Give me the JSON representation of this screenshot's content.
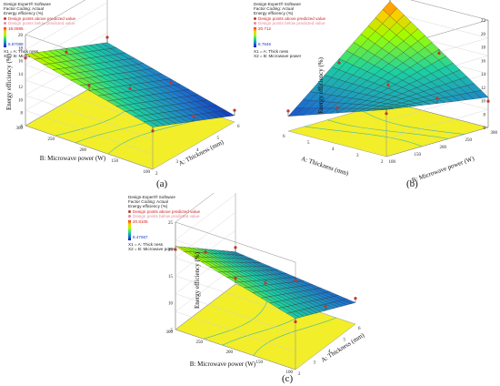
{
  "chart_data": [
    {
      "type": "surface",
      "panel_label": "(a)",
      "software": "Design-Expert® Software",
      "factor_coding": "Factor Coding: Actual",
      "response": "Energy efficiency (%)",
      "legend_above": "Design points above predicted value",
      "legend_below": "Design points below predicted value",
      "colorbar_max": "18.0595",
      "colorbar_min": "6.87098",
      "factor_x1": "X1 = A: Thick ness",
      "factor_x2": "X2 = B: Microwave power",
      "xlabel": "A: Thickness (mm)",
      "ylabel": "B: Microwave power (W)",
      "zlabel": "Energy efficiency (%)",
      "x_ticks": [
        "2",
        "3",
        "4",
        "5",
        "6"
      ],
      "y_ticks": [
        "100",
        "150",
        "200",
        "250",
        "300"
      ],
      "z_ticks": [
        "6",
        "8",
        "10",
        "12",
        "14",
        "16",
        "18",
        "20"
      ],
      "corner_values": {
        "a2_b100": 12.5,
        "a6_b100": 7.0,
        "a2_b300": 17.0,
        "a6_b300": 11.5
      },
      "zlim": [
        6,
        20
      ]
    },
    {
      "type": "surface",
      "panel_label": "(b)",
      "software": "Design-Expert® Software",
      "factor_coding": "Factor Coding: Actual",
      "response": "Energy efficiency (%)",
      "legend_above": "Design points above predicted value",
      "legend_below": "Design points below predicted value",
      "colorbar_max": "20.712",
      "colorbar_min": "8.7846",
      "factor_x1": "X1 = A: Thick ness",
      "factor_x2": "X2 = B: Microwave power",
      "xlabel": "A: Thickness (mm)",
      "ylabel": "B: Microwave power (W)",
      "zlabel": "Energy efficiency (%)",
      "x_ticks": [
        "2",
        "3",
        "4",
        "5",
        "6"
      ],
      "y_ticks": [
        "100",
        "150",
        "200",
        "250",
        "300"
      ],
      "z_ticks": [
        "6",
        "8",
        "10",
        "12",
        "14",
        "16",
        "18",
        "20",
        "22"
      ],
      "corner_values": {
        "a2_b100": 13.0,
        "a6_b100": 8.2,
        "a2_b300": 10.5,
        "a6_b300": 21.0
      },
      "zlim": [
        6,
        22
      ]
    },
    {
      "type": "surface",
      "panel_label": "(c)",
      "software": "Design-Expert® Software",
      "factor_coding": "Factor Coding: Actual",
      "response": "Energy efficiency (%)",
      "legend_above": "Design points above predicted value",
      "legend_below": "Design points below predicted value",
      "colorbar_max": "20.8105",
      "colorbar_min": "8.47667",
      "factor_x1": "X1 = A: Thick ness",
      "factor_x2": "X2 = B: Microwave power",
      "xlabel": "A: Thickness (mm)",
      "ylabel": "B: Microwave power (W)",
      "zlabel": "Energy efficiency (%)",
      "x_ticks": [
        "2",
        "3",
        "4",
        "5",
        "6"
      ],
      "y_ticks": [
        "100",
        "150",
        "200",
        "250",
        "300"
      ],
      "z_ticks": [
        "5",
        "10",
        "15",
        "20",
        "25"
      ],
      "corner_values": {
        "a2_b100": 14.5,
        "a6_b100": 9.0,
        "a2_b300": 20.5,
        "a6_b300": 11.0
      },
      "zlim": [
        5,
        25
      ]
    }
  ]
}
